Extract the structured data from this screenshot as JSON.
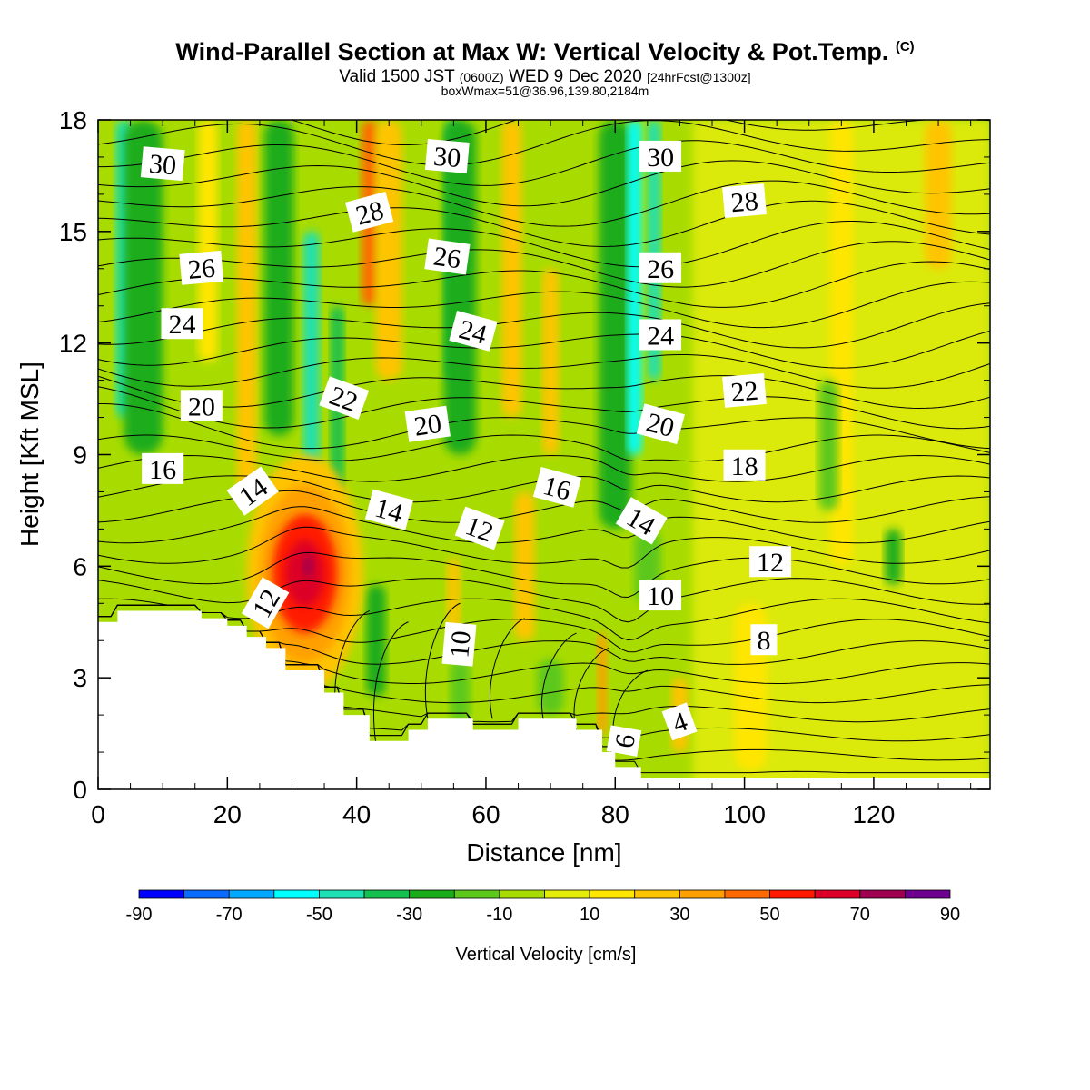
{
  "header": {
    "title": "Wind-Parallel Section at Max W: Vertical Velocity & Pot.Temp.",
    "title_tag": "(C)",
    "valid_prefix": "Valid 1500 JST",
    "valid_utc": "(0600Z)",
    "valid_date": "WED 9 Dec 2020",
    "forecast_info": "[24hrFcst@1300z]",
    "subtitle2": "boxWmax=51@36.96,139.80,2184m"
  },
  "chart_data": {
    "type": "heatmap",
    "xlabel": "Distance [nm]",
    "ylabel": "Height [Kft MSL]",
    "xlim": [
      0,
      138
    ],
    "ylim": [
      0,
      18
    ],
    "xticks": [
      0,
      20,
      40,
      60,
      80,
      100,
      120
    ],
    "yticks": [
      0,
      3,
      6,
      9,
      12,
      15,
      18
    ],
    "colorbar": {
      "label": "Vertical Velocity [cm/s]",
      "ticks": [
        -90,
        -70,
        -50,
        -30,
        -10,
        10,
        30,
        50,
        70,
        90
      ],
      "levels": [
        -90,
        -80,
        -70,
        -60,
        -50,
        -40,
        -30,
        -20,
        -10,
        0,
        10,
        20,
        30,
        40,
        50,
        60,
        70,
        80,
        90
      ],
      "colors": [
        "#0000ff",
        "#0a6cff",
        "#00a8ff",
        "#00ffff",
        "#1ee0b4",
        "#14c050",
        "#1aac1a",
        "#5cc81a",
        "#a8dc00",
        "#e4ec0a",
        "#ffe600",
        "#ffc400",
        "#ffa000",
        "#ff6a00",
        "#ff1a00",
        "#dc0028",
        "#a00050",
        "#6e0090"
      ]
    },
    "terrain_kft": [
      [
        0,
        4.5
      ],
      [
        3,
        4.5
      ],
      [
        3,
        4.8
      ],
      [
        16,
        4.8
      ],
      [
        16,
        4.6
      ],
      [
        20,
        4.6
      ],
      [
        20,
        4.4
      ],
      [
        23,
        4.4
      ],
      [
        23,
        4.1
      ],
      [
        26,
        4.1
      ],
      [
        26,
        3.8
      ],
      [
        29,
        3.8
      ],
      [
        29,
        3.2
      ],
      [
        35,
        3.2
      ],
      [
        35,
        2.6
      ],
      [
        38,
        2.6
      ],
      [
        38,
        2.0
      ],
      [
        42,
        2.0
      ],
      [
        42,
        1.3
      ],
      [
        48,
        1.3
      ],
      [
        48,
        1.6
      ],
      [
        51,
        1.6
      ],
      [
        51,
        1.9
      ],
      [
        58,
        1.9
      ],
      [
        58,
        1.6
      ],
      [
        65,
        1.6
      ],
      [
        65,
        1.9
      ],
      [
        74,
        1.9
      ],
      [
        74,
        1.6
      ],
      [
        78,
        1.6
      ],
      [
        78,
        1.0
      ],
      [
        80,
        1.0
      ],
      [
        80,
        0.6
      ],
      [
        84,
        0.6
      ],
      [
        84,
        0.3
      ],
      [
        138,
        0.3
      ]
    ],
    "velocity_features": [
      {
        "x": 4,
        "y0": 10,
        "y1": 18,
        "w": 2.5,
        "value": -45
      },
      {
        "x": 7,
        "y0": 9,
        "y1": 18,
        "w": 6,
        "value": -25
      },
      {
        "x": 17,
        "y0": 11.5,
        "y1": 18,
        "w": 3,
        "value": 15
      },
      {
        "x": 23,
        "y0": 8,
        "y1": 18,
        "w": 3,
        "value": 25
      },
      {
        "x": 28,
        "y0": 9.5,
        "y1": 18,
        "w": 4.5,
        "value": -30
      },
      {
        "x": 33,
        "y0": 8.5,
        "y1": 15,
        "w": 2.5,
        "value": -45
      },
      {
        "x": 37,
        "y0": 8,
        "y1": 13,
        "w": 2,
        "value": -35
      },
      {
        "x": 42,
        "y0": 13,
        "y1": 18,
        "w": 2.5,
        "value": 45
      },
      {
        "x": 45,
        "y0": 11,
        "y1": 18,
        "w": 4,
        "value": 25
      },
      {
        "x": 55,
        "y0": 11,
        "y1": 18,
        "w": 2.5,
        "value": -40
      },
      {
        "x": 56,
        "y0": 9,
        "y1": 18,
        "w": 5,
        "value": -25
      },
      {
        "x": 64,
        "y0": 10,
        "y1": 18,
        "w": 3,
        "value": 25
      },
      {
        "x": 70,
        "y0": 9,
        "y1": 14,
        "w": 2.5,
        "value": 20
      },
      {
        "x": 80,
        "y0": 7,
        "y1": 18,
        "w": 5,
        "value": -30
      },
      {
        "x": 83,
        "y0": 9,
        "y1": 18,
        "w": 2.2,
        "value": -55
      },
      {
        "x": 86,
        "y0": 11,
        "y1": 18,
        "w": 2,
        "value": -45
      },
      {
        "x": 66,
        "y0": 4,
        "y1": 8,
        "w": 3,
        "value": 20
      },
      {
        "x": 78,
        "y0": 1.5,
        "y1": 4.2,
        "w": 1.5,
        "value": 30
      },
      {
        "x": 90,
        "y0": 1,
        "y1": 3,
        "w": 2.5,
        "value": 20
      },
      {
        "x": 101,
        "y0": 0.5,
        "y1": 5,
        "w": 5,
        "value": 15
      },
      {
        "x": 115,
        "y0": 6,
        "y1": 18,
        "w": 3.5,
        "value": 15
      },
      {
        "x": 130,
        "y0": 14,
        "y1": 18,
        "w": 4,
        "value": 20
      },
      {
        "x": 123,
        "y0": 5.5,
        "y1": 7,
        "w": 2.5,
        "value": -25
      },
      {
        "x": 113,
        "y0": 7.5,
        "y1": 11,
        "w": 3,
        "value": -15
      },
      {
        "x": 43,
        "y0": 2.5,
        "y1": 5.5,
        "w": 3,
        "value": -30
      },
      {
        "x": 55,
        "y0": 4,
        "y1": 6.2,
        "w": 2,
        "value": 25
      },
      {
        "x": 56,
        "y0": 1.8,
        "y1": 3.5,
        "w": 3,
        "value": -12
      },
      {
        "x": 70,
        "y0": 2,
        "y1": 3.5,
        "w": 4,
        "value": -12
      },
      {
        "x": 85,
        "y0": 5,
        "y1": 7,
        "w": 4,
        "value": -12
      },
      {
        "x": 3,
        "y0": 0.5,
        "y1": 4.4,
        "w": 8,
        "value": -12
      }
    ],
    "velocity_blobs": [
      {
        "x": 32,
        "y": 5.8,
        "rx": 9,
        "ry": 3.2,
        "value": 20
      },
      {
        "x": 32,
        "y": 5.8,
        "rx": 7,
        "ry": 2.4,
        "value": 35
      },
      {
        "x": 32,
        "y": 5.8,
        "rx": 5,
        "ry": 1.6,
        "value": 50
      },
      {
        "x": 32,
        "y": 5.8,
        "rx": 3,
        "ry": 0.9,
        "value": 62
      },
      {
        "x": 32.5,
        "y": 6.0,
        "rx": 0.8,
        "ry": 0.3,
        "value": 75
      }
    ],
    "theta_contours": {
      "interval": 1,
      "labels": [
        {
          "text": "30",
          "x": 10,
          "y": 16.8,
          "angle": 5
        },
        {
          "text": "30",
          "x": 54,
          "y": 17.0,
          "angle": 5
        },
        {
          "text": "30",
          "x": 87,
          "y": 17.0,
          "angle": 0
        },
        {
          "text": "28",
          "x": 42,
          "y": 15.5,
          "angle": -15
        },
        {
          "text": "28",
          "x": 100,
          "y": 15.8,
          "angle": -5
        },
        {
          "text": "26",
          "x": 16,
          "y": 14.0,
          "angle": -5
        },
        {
          "text": "26",
          "x": 54,
          "y": 14.3,
          "angle": 8
        },
        {
          "text": "26",
          "x": 87,
          "y": 14.0,
          "angle": 0
        },
        {
          "text": "24",
          "x": 13,
          "y": 12.5,
          "angle": 0
        },
        {
          "text": "24",
          "x": 58,
          "y": 12.3,
          "angle": 15
        },
        {
          "text": "24",
          "x": 87,
          "y": 12.2,
          "angle": 0
        },
        {
          "text": "22",
          "x": 38,
          "y": 10.5,
          "angle": 20
        },
        {
          "text": "22",
          "x": 100,
          "y": 10.7,
          "angle": -5
        },
        {
          "text": "20",
          "x": 16,
          "y": 10.3,
          "angle": 0
        },
        {
          "text": "20",
          "x": 51,
          "y": 9.8,
          "angle": -8
        },
        {
          "text": "20",
          "x": 87,
          "y": 9.8,
          "angle": 15
        },
        {
          "text": "18",
          "x": 100,
          "y": 8.7,
          "angle": 0
        },
        {
          "text": "16",
          "x": 10,
          "y": 8.6,
          "angle": 0
        },
        {
          "text": "16",
          "x": 71,
          "y": 8.1,
          "angle": 15
        },
        {
          "text": "14",
          "x": 24,
          "y": 8.0,
          "angle": -35
        },
        {
          "text": "14",
          "x": 45,
          "y": 7.5,
          "angle": 15
        },
        {
          "text": "14",
          "x": 84,
          "y": 7.2,
          "angle": 30
        },
        {
          "text": "12",
          "x": 59,
          "y": 7.0,
          "angle": 20
        },
        {
          "text": "12",
          "x": 104,
          "y": 6.1,
          "angle": 0
        },
        {
          "text": "12",
          "x": 26,
          "y": 5.0,
          "angle": -60
        },
        {
          "text": "10",
          "x": 87,
          "y": 5.2,
          "angle": 0
        },
        {
          "text": "10",
          "x": 56,
          "y": 3.9,
          "angle": -85
        },
        {
          "text": "8",
          "x": 103,
          "y": 4.0,
          "angle": 0
        },
        {
          "text": "6",
          "x": 81.5,
          "y": 1.3,
          "angle": -80
        },
        {
          "text": "4",
          "x": 90,
          "y": 1.8,
          "angle": -20
        }
      ]
    }
  }
}
